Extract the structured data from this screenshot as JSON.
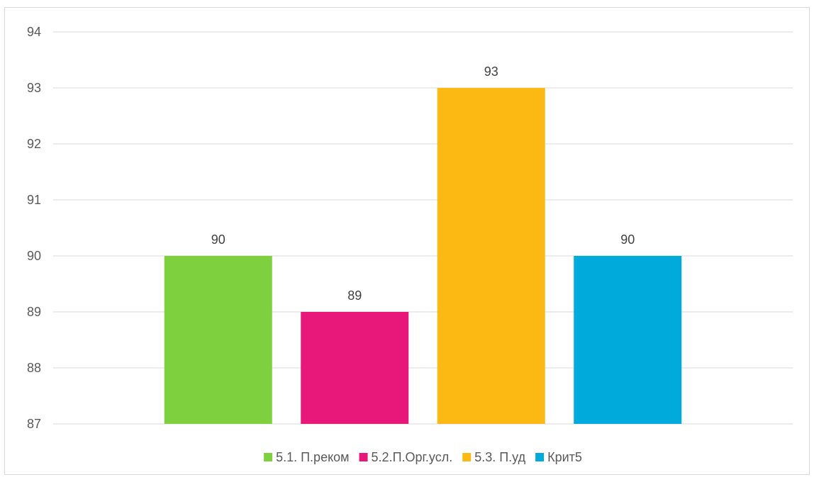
{
  "chart_data": {
    "type": "bar",
    "title": "",
    "xlabel": "",
    "ylabel": "",
    "ylim": [
      87,
      94
    ],
    "yticks": [
      87,
      88,
      89,
      90,
      91,
      92,
      93,
      94
    ],
    "grid": true,
    "legend_position": "bottom",
    "data_labels": true,
    "series": [
      {
        "name": "5.1. П.реком",
        "values": [
          90
        ],
        "color": "#7ed03e"
      },
      {
        "name": "5.2.П.Орг.усл.",
        "values": [
          89
        ],
        "color": "#e8177a"
      },
      {
        "name": "5.3. П.уд",
        "values": [
          93
        ],
        "color": "#fdb913"
      },
      {
        "name": "Крит5",
        "values": [
          90
        ],
        "color": "#00aadb"
      }
    ]
  }
}
